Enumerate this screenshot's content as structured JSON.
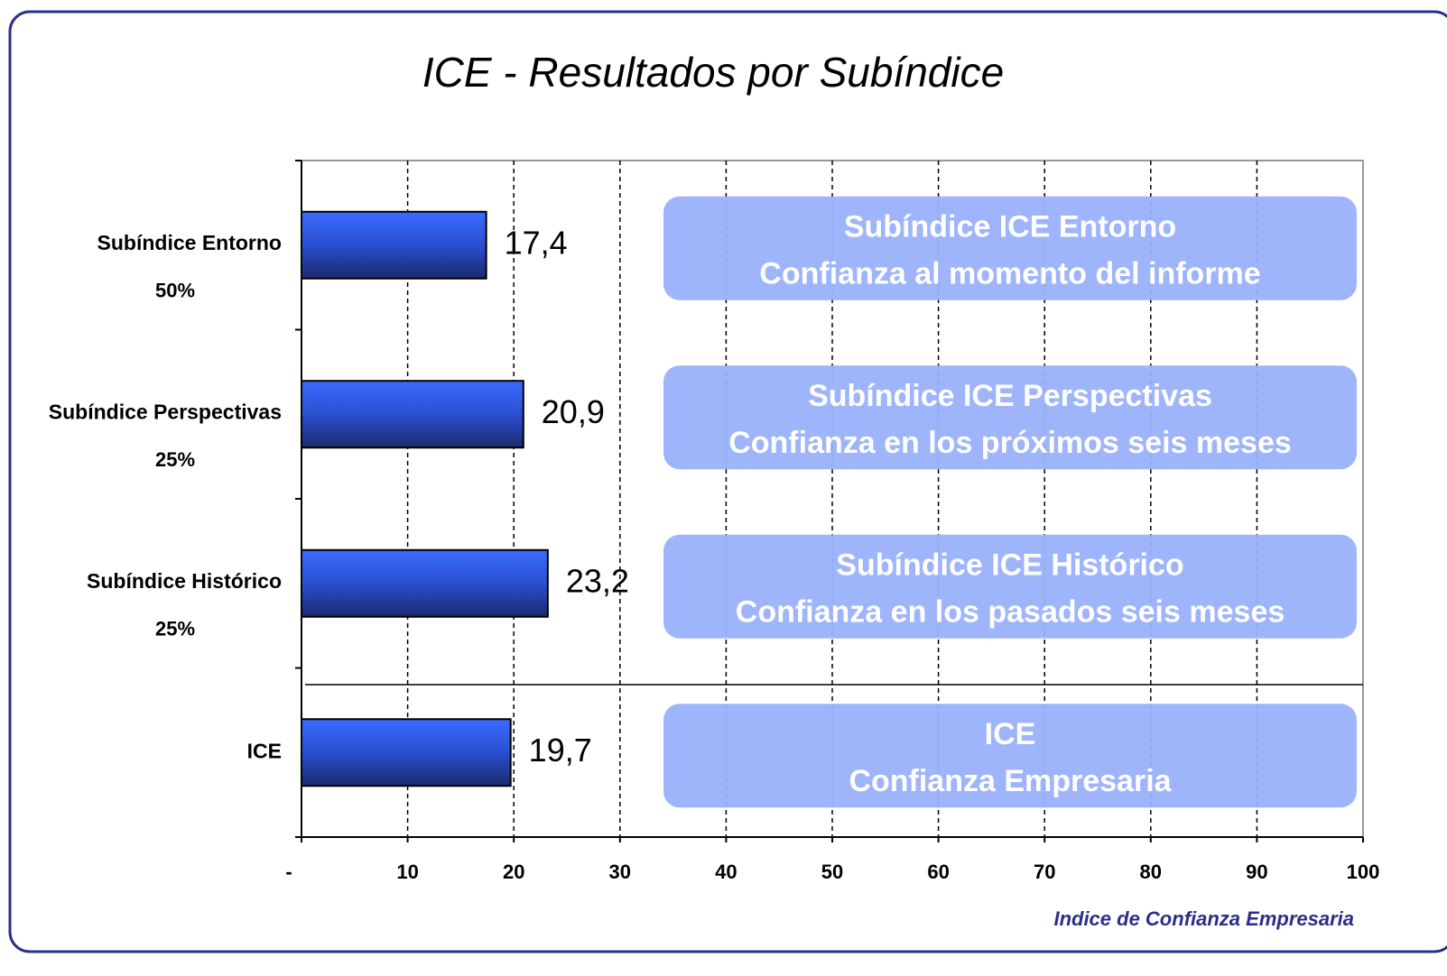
{
  "chart_data": {
    "type": "bar",
    "orientation": "horizontal",
    "title": "ICE - Resultados por Subíndice",
    "categories": [
      "Subíndice Entorno",
      "Subíndice Perspectivas",
      "Subíndice Histórico",
      "ICE"
    ],
    "weights": [
      "50%",
      "25%",
      "25%",
      null
    ],
    "values": [
      17.4,
      20.9,
      23.2,
      19.7
    ],
    "value_labels": [
      "17,4",
      "20,9",
      "23,2",
      "19,7"
    ],
    "color": "#3366ff",
    "xlim": [
      0,
      100
    ],
    "xticks": [
      {
        "value": 0,
        "label": "-"
      },
      10,
      20,
      30,
      40,
      50,
      60,
      70,
      80,
      90,
      100
    ],
    "grid": true,
    "annotations": [
      {
        "title": "Subíndice ICE Entorno",
        "text": "Confianza al momento del informe"
      },
      {
        "title": "Subíndice ICE Perspectivas",
        "text": "Confianza en los próximos seis meses"
      },
      {
        "title": "Subíndice ICE Histórico",
        "text": "Confianza en los pasados seis meses"
      },
      {
        "title": "ICE",
        "text": "Confianza Empresaria"
      }
    ],
    "footer": "Indice de Confianza Empresaria"
  }
}
